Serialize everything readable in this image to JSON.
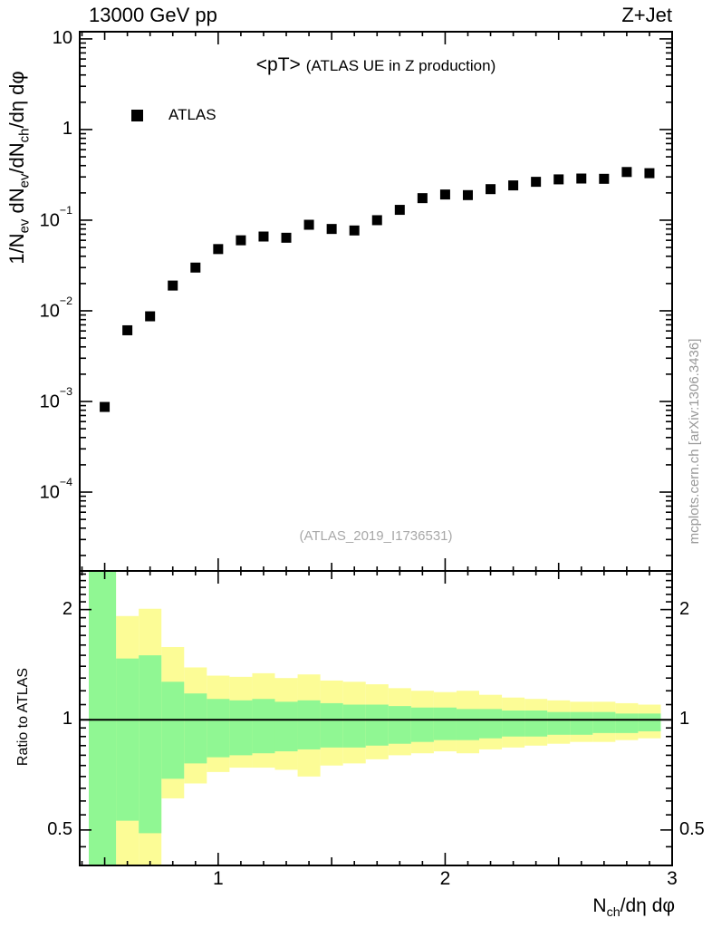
{
  "header": {
    "left": "13000 GeV pp",
    "right": "Z+Jet"
  },
  "plot": {
    "title_main": "<pT>",
    "title_sub": "(ATLAS UE in Z production)",
    "legend": [
      {
        "label": "ATLAS",
        "marker": "filled-square",
        "color": "#000000"
      }
    ],
    "watermark": "(ATLAS_2019_I1736531)",
    "side_note": "mcplots.cern.ch [arXiv:1306.3436]",
    "colors": {
      "band_outer": "#fcfc96",
      "band_inner": "#90f793",
      "marker": "#000000",
      "gray_text": "#999999"
    }
  },
  "chart_data": [
    {
      "type": "scatter",
      "name": "main-panel",
      "title": "<pT> (ATLAS UE in Z production)",
      "xlabel": "N_ch/dη dφ",
      "ylabel": "1/N_ev dN_ev/dN_ch/dη dφ",
      "xscale": "linear",
      "yscale": "log",
      "xlim": [
        0.39,
        3.0
      ],
      "ylim": [
        1.35e-05,
        12
      ],
      "x_major_ticks": [
        1,
        2,
        3
      ],
      "y_decades": [
        1,
        0,
        -1,
        -2,
        -3,
        -4
      ],
      "grid": false,
      "legend_position": "top-left-inside",
      "series": [
        {
          "name": "ATLAS",
          "marker": "square",
          "color": "#000000",
          "x": [
            0.5,
            0.6,
            0.7,
            0.8,
            0.9,
            1.0,
            1.1,
            1.2,
            1.3,
            1.4,
            1.5,
            1.6,
            1.7,
            1.8,
            1.9,
            2.0,
            2.1,
            2.2,
            2.3,
            2.4,
            2.5,
            2.6,
            2.7,
            2.8,
            2.9
          ],
          "y": [
            0.00087,
            0.0061,
            0.0087,
            0.019,
            0.03,
            0.048,
            0.06,
            0.066,
            0.064,
            0.089,
            0.08,
            0.077,
            0.1,
            0.13,
            0.175,
            0.192,
            0.189,
            0.22,
            0.242,
            0.265,
            0.282,
            0.288,
            0.286,
            0.34,
            0.33
          ]
        }
      ]
    },
    {
      "type": "band-ratio",
      "name": "ratio-panel",
      "ylabel": "Ratio to ATLAS",
      "xscale": "linear",
      "yscale": "log",
      "xlim": [
        0.39,
        3.0
      ],
      "ylim": [
        0.4,
        2.55
      ],
      "y_major_ticks": [
        0.5,
        1,
        2
      ],
      "y_minor_ticks": [
        0.45,
        0.55,
        0.6,
        0.65,
        0.7,
        0.75,
        0.8,
        0.85,
        0.9,
        0.95,
        1.1,
        1.2,
        1.3,
        1.4,
        1.5,
        1.6,
        1.7,
        1.8,
        1.9,
        2.1,
        2.2,
        2.3,
        2.4,
        2.5
      ],
      "reference_line": 1,
      "bins": {
        "edges": [
          0.43,
          0.55,
          0.65,
          0.75,
          0.85,
          0.95,
          1.05,
          1.15,
          1.25,
          1.35,
          1.45,
          1.55,
          1.65,
          1.75,
          1.85,
          1.95,
          2.05,
          2.15,
          2.25,
          2.35,
          2.45,
          2.55,
          2.65,
          2.75,
          2.85,
          2.95
        ],
        "yellow_hi": [
          2.6,
          1.92,
          2.01,
          1.58,
          1.39,
          1.32,
          1.31,
          1.34,
          1.3,
          1.33,
          1.28,
          1.27,
          1.25,
          1.22,
          1.2,
          1.19,
          1.2,
          1.17,
          1.15,
          1.14,
          1.13,
          1.12,
          1.12,
          1.11,
          1.1
        ],
        "green_hi": [
          2.6,
          1.47,
          1.5,
          1.27,
          1.18,
          1.14,
          1.13,
          1.14,
          1.12,
          1.13,
          1.11,
          1.1,
          1.1,
          1.09,
          1.08,
          1.08,
          1.07,
          1.07,
          1.06,
          1.06,
          1.05,
          1.05,
          1.05,
          1.04,
          1.04
        ],
        "green_lo": [
          0.36,
          0.53,
          0.49,
          0.69,
          0.76,
          0.79,
          0.8,
          0.81,
          0.82,
          0.83,
          0.84,
          0.84,
          0.85,
          0.86,
          0.87,
          0.88,
          0.88,
          0.89,
          0.9,
          0.9,
          0.91,
          0.91,
          0.92,
          0.92,
          0.93
        ],
        "yellow_lo": [
          0.36,
          0.36,
          0.36,
          0.61,
          0.67,
          0.72,
          0.74,
          0.74,
          0.73,
          0.7,
          0.75,
          0.76,
          0.78,
          0.8,
          0.81,
          0.82,
          0.81,
          0.83,
          0.84,
          0.85,
          0.86,
          0.87,
          0.87,
          0.88,
          0.89
        ]
      }
    }
  ]
}
